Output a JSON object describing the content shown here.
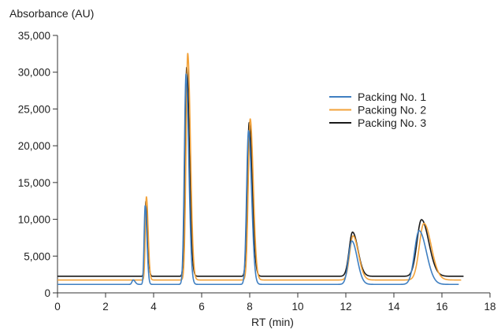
{
  "chart_data": {
    "type": "line",
    "ylabel": "Absorbance (AU)",
    "xlabel": "RT (min)",
    "xlim": [
      0,
      18
    ],
    "ylim": [
      0,
      35000
    ],
    "x_ticks": [
      0,
      2,
      4,
      6,
      8,
      10,
      12,
      14,
      16,
      18
    ],
    "x_tick_labels": [
      "0",
      "2",
      "4",
      "6",
      "8",
      "10",
      "12",
      "14",
      "16",
      "18"
    ],
    "y_ticks": [
      0,
      5000,
      10000,
      15000,
      20000,
      25000,
      30000,
      35000
    ],
    "y_tick_labels": [
      "0",
      "5,000",
      "10,000",
      "15,000",
      "20,000",
      "25,000",
      "30,000",
      "35,000"
    ],
    "grid": false,
    "legend_position": "right",
    "series": [
      {
        "name": "Packing No. 1",
        "color": "#3f7fc1",
        "baseline": 1150,
        "x_end": 16.7,
        "peaks": [
          {
            "rt": 3.15,
            "height": 600,
            "width": 0.05
          },
          {
            "rt": 3.65,
            "height": 10700,
            "width": 0.045
          },
          {
            "rt": 5.35,
            "height": 28600,
            "width": 0.07
          },
          {
            "rt": 7.95,
            "height": 20900,
            "width": 0.08
          },
          {
            "rt": 12.25,
            "height": 5900,
            "width": 0.14
          },
          {
            "rt": 15.05,
            "height": 7300,
            "width": 0.19
          }
        ]
      },
      {
        "name": "Packing No. 2",
        "color": "#f2a23a",
        "baseline": 1750,
        "x_end": 16.8,
        "peaks": [
          {
            "rt": 3.7,
            "height": 11300,
            "width": 0.045
          },
          {
            "rt": 5.42,
            "height": 30800,
            "width": 0.07
          },
          {
            "rt": 8.02,
            "height": 21900,
            "width": 0.08
          },
          {
            "rt": 12.3,
            "height": 6000,
            "width": 0.14
          },
          {
            "rt": 15.25,
            "height": 7700,
            "width": 0.19
          }
        ]
      },
      {
        "name": "Packing No. 3",
        "color": "#1a1a1a",
        "baseline": 2250,
        "x_end": 16.9,
        "peaks": [
          {
            "rt": 3.68,
            "height": 10200,
            "width": 0.045
          },
          {
            "rt": 5.38,
            "height": 28400,
            "width": 0.07
          },
          {
            "rt": 7.98,
            "height": 20900,
            "width": 0.08
          },
          {
            "rt": 12.28,
            "height": 6000,
            "width": 0.14
          },
          {
            "rt": 15.15,
            "height": 7700,
            "width": 0.19
          }
        ]
      }
    ]
  }
}
